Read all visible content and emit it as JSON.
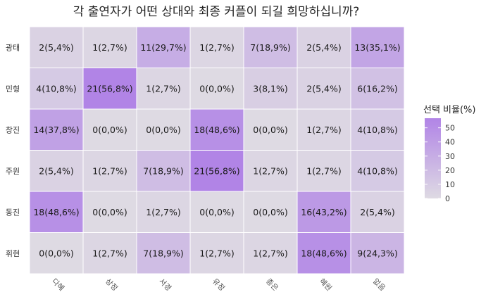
{
  "chart_data": {
    "type": "heatmap",
    "title": "각 출연자가 어떤 상대와 최종 커플이 되길 희망하십니까?",
    "rows": [
      "광태",
      "민형",
      "창진",
      "주원",
      "동진",
      "휘현"
    ],
    "columns": [
      "다혜",
      "상정",
      "서경",
      "유정",
      "종은",
      "혜원",
      "없음"
    ],
    "cells": [
      [
        "2(5,4%)",
        "1(2,7%)",
        "11(29,7%)",
        "1(2,7%)",
        "7(18,9%)",
        "2(5,4%)",
        "13(35,1%)"
      ],
      [
        "4(10,8%)",
        "21(56,8%)",
        "1(2,7%)",
        "0(0,0%)",
        "3(8,1%)",
        "2(5,4%)",
        "6(16,2%)"
      ],
      [
        "14(37,8%)",
        "0(0,0%)",
        "0(0,0%)",
        "18(48,6%)",
        "0(0,0%)",
        "1(2,7%)",
        "4(10,8%)"
      ],
      [
        "2(5,4%)",
        "1(2,7%)",
        "7(18,9%)",
        "21(56,8%)",
        "1(2,7%)",
        "1(2,7%)",
        "4(10,8%)"
      ],
      [
        "18(48,6%)",
        "0(0,0%)",
        "1(2,7%)",
        "0(0,0%)",
        "0(0,0%)",
        "16(43,2%)",
        "2(5,4%)"
      ],
      [
        "0(0,0%)",
        "1(2,7%)",
        "7(18,9%)",
        "1(2,7%)",
        "1(2,7%)",
        "18(48,6%)",
        "9(24,3%)"
      ]
    ],
    "values": [
      [
        5.4,
        2.7,
        29.7,
        2.7,
        18.9,
        5.4,
        35.1
      ],
      [
        10.8,
        56.8,
        2.7,
        0.0,
        8.1,
        5.4,
        16.2
      ],
      [
        37.8,
        0.0,
        0.0,
        48.6,
        0.0,
        2.7,
        10.8
      ],
      [
        5.4,
        2.7,
        18.9,
        56.8,
        2.7,
        2.7,
        10.8
      ],
      [
        48.6,
        0.0,
        2.7,
        0.0,
        0.0,
        43.2,
        5.4
      ],
      [
        0.0,
        2.7,
        18.9,
        2.7,
        2.7,
        48.6,
        24.3
      ]
    ],
    "legend": {
      "title": "선택 비율(%)",
      "ticks": [
        0,
        10,
        20,
        30,
        40,
        50
      ],
      "range": [
        0,
        56.8
      ],
      "position": "right"
    },
    "colors": {
      "low": "#dedae3",
      "high": "#b184e6"
    }
  }
}
